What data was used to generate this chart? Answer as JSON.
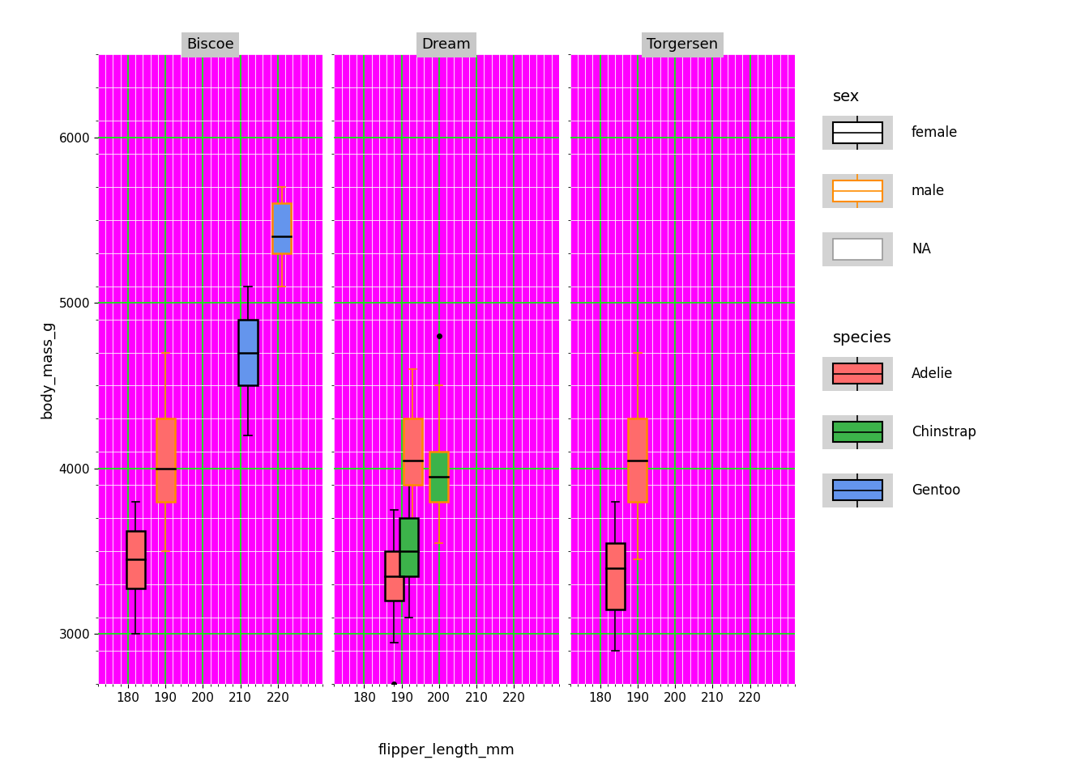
{
  "xlabel": "flipper_length_mm",
  "ylabel": "body_mass_g",
  "facets": [
    "Biscoe",
    "Dream",
    "Torgersen"
  ],
  "panel_bg": "#FF00FF",
  "strip_bg": "#C8C8C8",
  "ylim": [
    2700,
    6500
  ],
  "xlim": [
    172,
    232
  ],
  "yticks": [
    3000,
    4000,
    5000,
    6000
  ],
  "xticks": [
    180,
    190,
    200,
    210,
    220
  ],
  "species_colors": {
    "Adelie": "#FF6B6B",
    "Chinstrap": "#3CB34A",
    "Gentoo": "#6495ED"
  },
  "sex_edge_colors": {
    "female": "#000000",
    "male": "#FF8C00"
  },
  "legend_sex_title": "sex",
  "legend_species_title": "species",
  "boxes": {
    "Biscoe": [
      {
        "species": "Adelie",
        "sex": "female",
        "x": 182,
        "q1": 3275,
        "median": 3450,
        "q3": 3625,
        "wlo": 3000,
        "whi": 3800,
        "outliers": []
      },
      {
        "species": "Adelie",
        "sex": "male",
        "x": 190,
        "q1": 3800,
        "median": 4000,
        "q3": 4300,
        "wlo": 3500,
        "whi": 4700,
        "outliers": []
      },
      {
        "species": "Gentoo",
        "sex": "female",
        "x": 212,
        "q1": 4500,
        "median": 4700,
        "q3": 4900,
        "wlo": 4200,
        "whi": 5100,
        "outliers": []
      },
      {
        "species": "Gentoo",
        "sex": "male",
        "x": 221,
        "q1": 5300,
        "median": 5400,
        "q3": 5600,
        "wlo": 5100,
        "whi": 5700,
        "outliers": []
      }
    ],
    "Dream": [
      {
        "species": "Adelie",
        "sex": "female",
        "x": 188,
        "q1": 3200,
        "median": 3350,
        "q3": 3500,
        "wlo": 2950,
        "whi": 3750,
        "outliers": [
          2700
        ]
      },
      {
        "species": "Adelie",
        "sex": "male",
        "x": 193,
        "q1": 3900,
        "median": 4050,
        "q3": 4300,
        "wlo": 3500,
        "whi": 4600,
        "outliers": []
      },
      {
        "species": "Chinstrap",
        "sex": "female",
        "x": 192,
        "q1": 3350,
        "median": 3500,
        "q3": 3700,
        "wlo": 3100,
        "whi": 3900,
        "outliers": []
      },
      {
        "species": "Chinstrap",
        "sex": "male",
        "x": 200,
        "q1": 3800,
        "median": 3950,
        "q3": 4100,
        "wlo": 3550,
        "whi": 4500,
        "outliers": [
          4800
        ]
      }
    ],
    "Torgersen": [
      {
        "species": "Adelie",
        "sex": "female",
        "x": 184,
        "q1": 3150,
        "median": 3400,
        "q3": 3550,
        "wlo": 2900,
        "whi": 3800,
        "outliers": []
      },
      {
        "species": "Adelie",
        "sex": "male",
        "x": 190,
        "q1": 3800,
        "median": 4050,
        "q3": 4300,
        "wlo": 3450,
        "whi": 4700,
        "outliers": []
      }
    ]
  }
}
